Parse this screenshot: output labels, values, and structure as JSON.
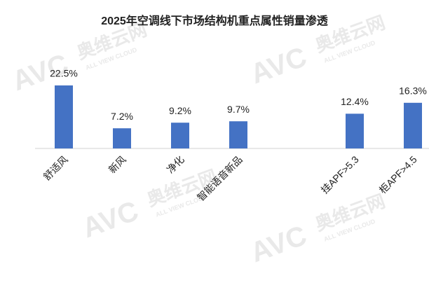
{
  "chart_data": {
    "type": "bar",
    "title": "2025年空调线下市场结构机重点属性销量渗透",
    "categories": [
      "舒适风",
      "新风",
      "净化",
      "智能语音新品",
      null,
      "挂APF>5.3",
      "柜APF>4.5"
    ],
    "values": [
      22.5,
      7.2,
      9.2,
      9.7,
      null,
      12.4,
      16.3
    ],
    "value_labels": [
      "22.5%",
      "7.2%",
      "9.2%",
      "9.7%",
      null,
      "12.4%",
      "16.3%"
    ],
    "color": "#4472c4",
    "watermark": {
      "logo": "AVC",
      "name": "奥维云网",
      "sub": "ALL VIEW CLOUD"
    }
  }
}
